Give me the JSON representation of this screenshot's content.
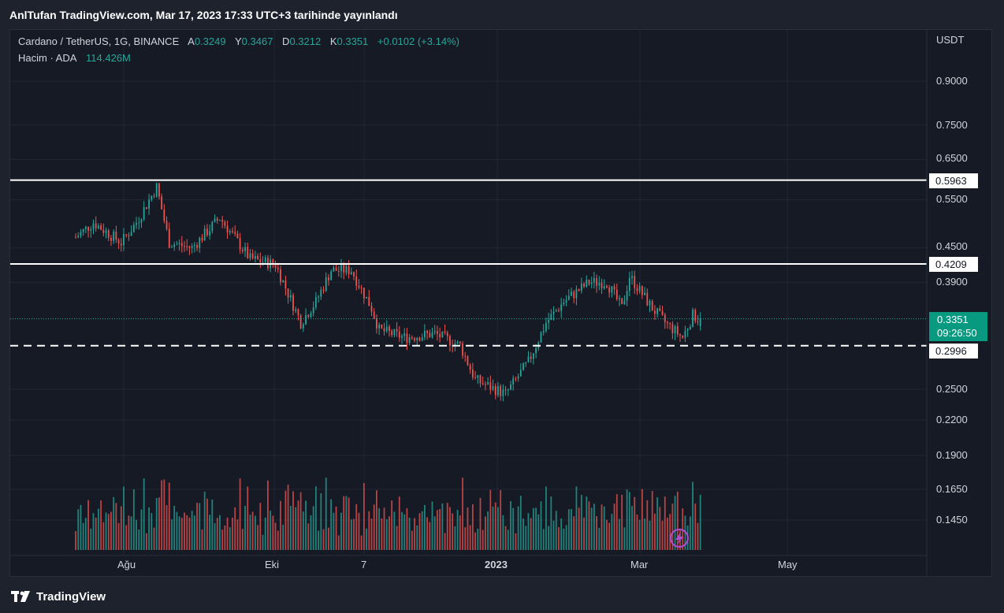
{
  "header": {
    "published_text": "AnlTufan TradingView.com, Mar 17, 2023 17:33 UTC+3 tarihinde yayınlandı"
  },
  "legend": {
    "symbol": "Cardano / TetherUS, 1G, BINANCE",
    "open_label": "A",
    "open": "0.3249",
    "high_label": "Y",
    "high": "0.3467",
    "low_label": "D",
    "low": "0.3212",
    "close_label": "K",
    "close": "0.3351",
    "change": "+0.0102 (+3.14%)",
    "volume_label": "Hacim · ADA",
    "volume_value": "114.426M"
  },
  "price_axis": {
    "currency": "USDT",
    "ticks": [
      "0.9000",
      "0.7500",
      "0.6500",
      "0.5500",
      "0.4500",
      "0.3900",
      "0.2500",
      "0.2200",
      "0.1900",
      "0.1650",
      "0.1450"
    ]
  },
  "time_axis": {
    "ticks": [
      "Ağu",
      "Eki",
      "7",
      "2023",
      "Mar",
      "May"
    ]
  },
  "levels": {
    "resistance_top": "0.5963",
    "resistance_mid": "0.4209",
    "support": "0.2996"
  },
  "last_price": {
    "value": "0.3351",
    "countdown": "09:26:50"
  },
  "footer": {
    "brand": "TradingView"
  },
  "colors": {
    "up": "#26a69a",
    "down": "#ef5350",
    "volume_up": "#26a69a",
    "volume_down": "#ef5350",
    "background": "#161a25",
    "level_line": "#ffffff"
  },
  "chart_data": {
    "type": "candlestick",
    "scale": "log",
    "timeframe": "1G",
    "exchange": "BINANCE",
    "symbol": "Cardano / TetherUS",
    "quote_unit": "USDT",
    "x_range": [
      "2022-07-11",
      "2023-05-25"
    ],
    "y_axis_ticks": [
      0.9,
      0.75,
      0.65,
      0.55,
      0.45,
      0.39,
      0.25,
      0.22,
      0.19,
      0.165,
      0.145
    ],
    "horizontal_levels": [
      {
        "value": 0.5963,
        "style": "solid"
      },
      {
        "value": 0.4209,
        "style": "solid"
      },
      {
        "value": 0.2996,
        "style": "dashed"
      }
    ],
    "last": {
      "open": 0.3249,
      "high": 0.3467,
      "low": 0.3212,
      "close": 0.3351,
      "change": 0.0102,
      "change_pct": 3.14
    },
    "volume_last": "114.426M",
    "price_path_anchors": [
      {
        "date": "2022-07-13",
        "close": 0.47
      },
      {
        "date": "2022-07-20",
        "close": 0.5
      },
      {
        "date": "2022-07-31",
        "close": 0.46
      },
      {
        "date": "2022-08-06",
        "close": 0.5
      },
      {
        "date": "2022-08-14",
        "close": 0.58
      },
      {
        "date": "2022-08-19",
        "close": 0.46
      },
      {
        "date": "2022-08-28",
        "close": 0.45
      },
      {
        "date": "2022-09-08",
        "close": 0.51
      },
      {
        "date": "2022-09-20",
        "close": 0.43
      },
      {
        "date": "2022-09-30",
        "close": 0.42
      },
      {
        "date": "2022-10-10",
        "close": 0.33
      },
      {
        "date": "2022-10-16",
        "close": 0.36
      },
      {
        "date": "2022-10-22",
        "close": 0.41
      },
      {
        "date": "2022-10-30",
        "close": 0.41
      },
      {
        "date": "2022-11-07",
        "close": 0.35
      },
      {
        "date": "2022-11-10",
        "close": 0.32
      },
      {
        "date": "2022-11-20",
        "close": 0.31
      },
      {
        "date": "2022-12-02",
        "close": 0.315
      },
      {
        "date": "2022-12-12",
        "close": 0.3
      },
      {
        "date": "2022-12-18",
        "close": 0.26
      },
      {
        "date": "2022-12-30",
        "close": 0.245
      },
      {
        "date": "2023-01-08",
        "close": 0.28
      },
      {
        "date": "2023-01-15",
        "close": 0.33
      },
      {
        "date": "2023-01-22",
        "close": 0.36
      },
      {
        "date": "2023-02-01",
        "close": 0.39
      },
      {
        "date": "2023-02-08",
        "close": 0.39
      },
      {
        "date": "2023-02-14",
        "close": 0.35
      },
      {
        "date": "2023-02-17",
        "close": 0.4
      },
      {
        "date": "2023-02-26",
        "close": 0.35
      },
      {
        "date": "2023-03-03",
        "close": 0.33
      },
      {
        "date": "2023-03-10",
        "close": 0.31
      },
      {
        "date": "2023-03-14",
        "close": 0.34
      },
      {
        "date": "2023-03-17",
        "close": 0.3351
      }
    ]
  }
}
